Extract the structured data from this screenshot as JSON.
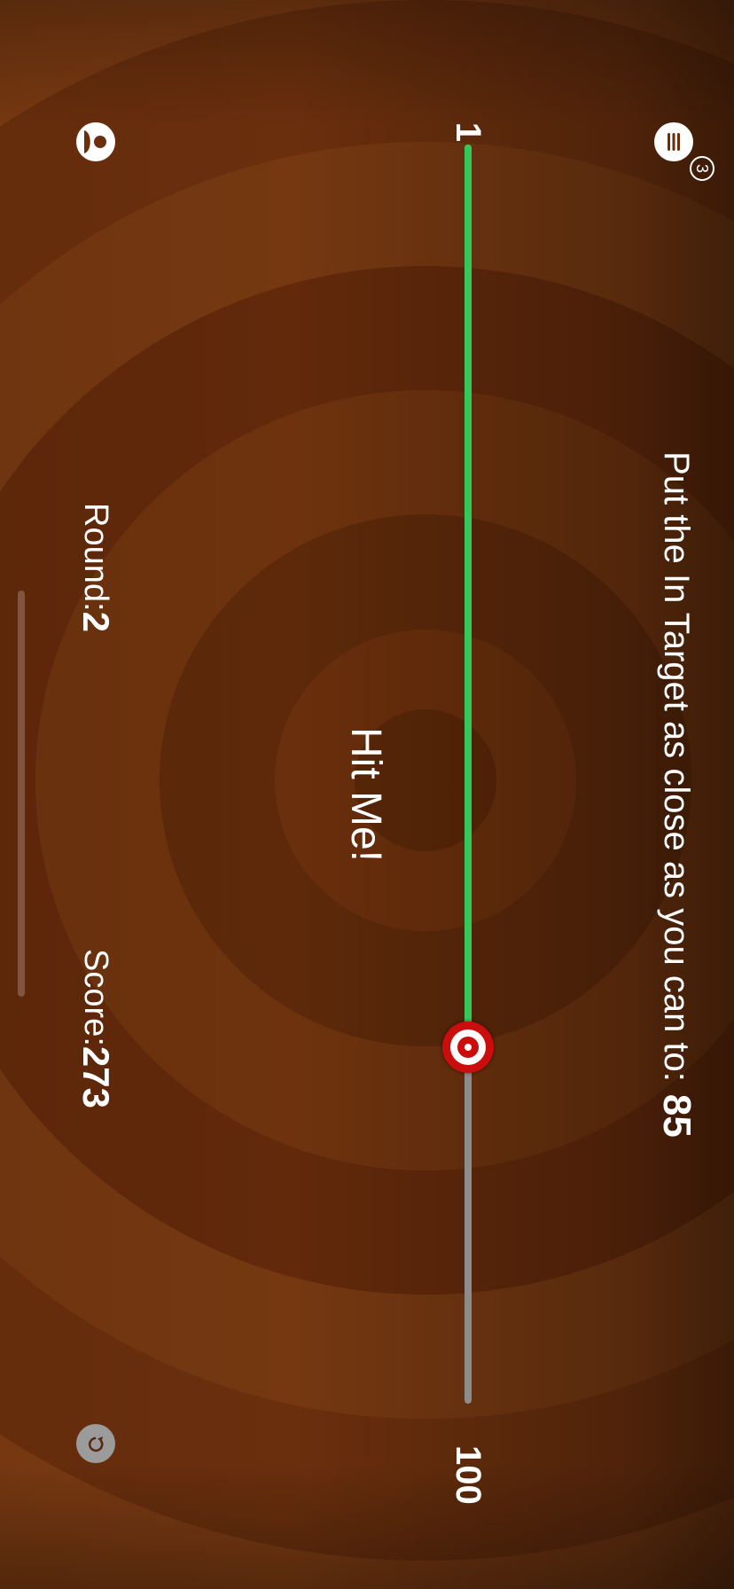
{
  "instruction": {
    "text": "Put the In Target as close as you can to:",
    "target_value": "85"
  },
  "slider": {
    "min_label": "1",
    "max_label": "100",
    "min": 1,
    "max": 100,
    "value": 72,
    "fill_color": "#34c759",
    "track_color": "#8c8c8c",
    "thumb_icon": "target-icon"
  },
  "hit_button": {
    "label": "Hit Me!"
  },
  "menu": {
    "icon": "list-icon",
    "badge": "3"
  },
  "reset": {
    "icon": "undo-icon"
  },
  "profile": {
    "icon": "person-icon"
  },
  "score": {
    "label": "Score:",
    "value": "273"
  },
  "round": {
    "label": "Round:",
    "value": "2"
  }
}
